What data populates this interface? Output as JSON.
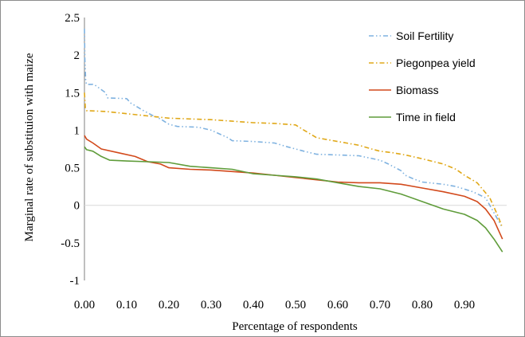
{
  "chart_data": {
    "type": "line",
    "xlabel": "Percentage of respondents",
    "ylabel": "Marginal rate of substituion with maize",
    "xlim": [
      0,
      1
    ],
    "ylim": [
      -1,
      2.5
    ],
    "x_ticks": [
      "0.00",
      "0.10",
      "0.20",
      "0.30",
      "0.40",
      "0.50",
      "0.60",
      "0.70",
      "0.80",
      "0.90"
    ],
    "x_tick_values": [
      0,
      0.1,
      0.2,
      0.3,
      0.4,
      0.5,
      0.6,
      0.7,
      0.8,
      0.9
    ],
    "y_ticks": [
      "2.5",
      "2",
      "1.5",
      "1",
      "0.5",
      "0",
      "-0.5",
      "-1"
    ],
    "y_tick_values": [
      2.5,
      2,
      1.5,
      1,
      0.5,
      0,
      -0.5,
      -1
    ],
    "grid": false,
    "legend_position": "top-right",
    "series": [
      {
        "name": "Soil Fertility",
        "color": "#7fb2e0",
        "dash": "dash-dot-dot",
        "x": [
          0,
          0.001,
          0.003,
          0.005,
          0.02,
          0.025,
          0.05,
          0.055,
          0.1,
          0.11,
          0.14,
          0.16,
          0.18,
          0.2,
          0.22,
          0.27,
          0.3,
          0.34,
          0.35,
          0.4,
          0.45,
          0.48,
          0.5,
          0.52,
          0.55,
          0.6,
          0.65,
          0.7,
          0.72,
          0.75,
          0.76,
          0.78,
          0.8,
          0.85,
          0.88,
          0.92,
          0.95,
          0.97,
          0.99
        ],
        "y": [
          2.35,
          1.95,
          1.65,
          1.61,
          1.61,
          1.6,
          1.5,
          1.43,
          1.42,
          1.36,
          1.26,
          1.2,
          1.15,
          1.08,
          1.05,
          1.04,
          1.0,
          0.9,
          0.86,
          0.85,
          0.83,
          0.78,
          0.75,
          0.72,
          0.68,
          0.67,
          0.66,
          0.6,
          0.55,
          0.46,
          0.4,
          0.35,
          0.31,
          0.28,
          0.25,
          0.18,
          0.1,
          -0.1,
          -0.3
        ]
      },
      {
        "name": "Piegonpea yield",
        "color": "#e0a818",
        "dash": "dash-dot",
        "x": [
          0,
          0.002,
          0.005,
          0.05,
          0.1,
          0.15,
          0.2,
          0.25,
          0.3,
          0.35,
          0.4,
          0.45,
          0.5,
          0.52,
          0.55,
          0.6,
          0.65,
          0.68,
          0.7,
          0.73,
          0.76,
          0.8,
          0.85,
          0.88,
          0.9,
          0.93,
          0.96,
          0.98,
          0.99
        ],
        "y": [
          1.5,
          1.3,
          1.26,
          1.25,
          1.22,
          1.19,
          1.16,
          1.15,
          1.14,
          1.12,
          1.1,
          1.09,
          1.07,
          1.0,
          0.9,
          0.85,
          0.8,
          0.75,
          0.72,
          0.7,
          0.67,
          0.62,
          0.55,
          0.48,
          0.4,
          0.3,
          0.1,
          -0.15,
          -0.3
        ]
      },
      {
        "name": "Biomass",
        "color": "#d2491b",
        "dash": "solid",
        "x": [
          0,
          0.005,
          0.02,
          0.04,
          0.08,
          0.12,
          0.15,
          0.18,
          0.2,
          0.25,
          0.3,
          0.35,
          0.4,
          0.45,
          0.5,
          0.55,
          0.6,
          0.65,
          0.7,
          0.75,
          0.8,
          0.85,
          0.9,
          0.93,
          0.95,
          0.97,
          0.99
        ],
        "y": [
          0.93,
          0.88,
          0.83,
          0.75,
          0.7,
          0.65,
          0.58,
          0.55,
          0.5,
          0.48,
          0.47,
          0.45,
          0.43,
          0.4,
          0.37,
          0.34,
          0.31,
          0.3,
          0.3,
          0.28,
          0.23,
          0.18,
          0.12,
          0.05,
          -0.05,
          -0.2,
          -0.45
        ]
      },
      {
        "name": "Time in field",
        "color": "#5f9c3a",
        "dash": "solid",
        "x": [
          0,
          0.005,
          0.02,
          0.04,
          0.06,
          0.1,
          0.15,
          0.2,
          0.25,
          0.3,
          0.35,
          0.4,
          0.45,
          0.5,
          0.55,
          0.6,
          0.65,
          0.7,
          0.75,
          0.8,
          0.85,
          0.9,
          0.93,
          0.95,
          0.97,
          0.99
        ],
        "y": [
          0.78,
          0.74,
          0.72,
          0.65,
          0.6,
          0.59,
          0.58,
          0.57,
          0.52,
          0.5,
          0.48,
          0.42,
          0.4,
          0.38,
          0.35,
          0.3,
          0.25,
          0.22,
          0.15,
          0.05,
          -0.05,
          -0.12,
          -0.2,
          -0.3,
          -0.45,
          -0.62
        ]
      }
    ]
  }
}
